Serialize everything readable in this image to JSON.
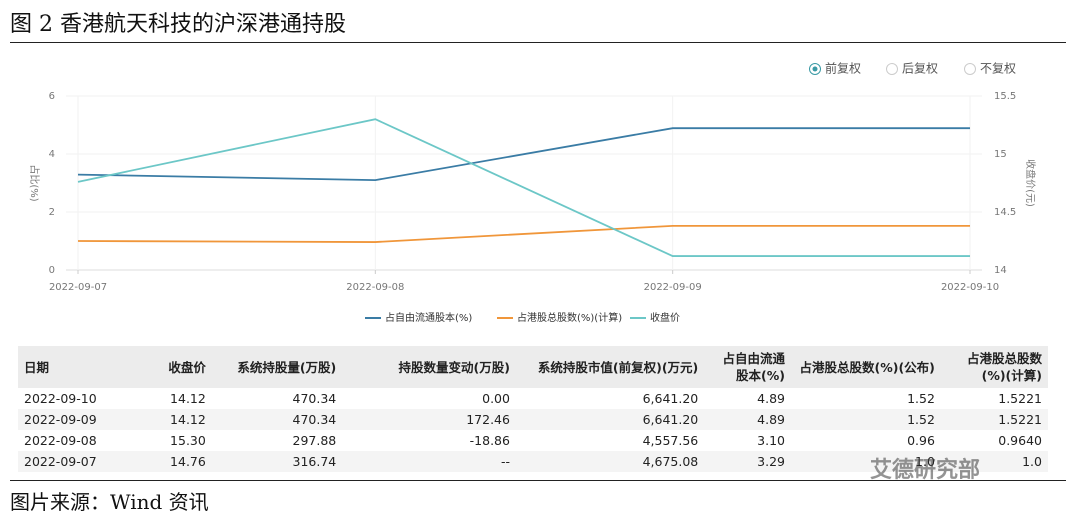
{
  "header": {
    "title": "图 2 香港航天科技的沪深港通持股"
  },
  "controls": {
    "options": [
      "前复权",
      "后复权",
      "不复权"
    ],
    "selected": 0
  },
  "chart_data": {
    "type": "line",
    "categories": [
      "2022-09-07",
      "2022-09-08",
      "2022-09-09",
      "2022-09-10"
    ],
    "y_label": "占比(%)",
    "y2_label": "收盘价(元)",
    "ylim": [
      0,
      6
    ],
    "yticks": [
      0,
      2,
      4,
      6
    ],
    "y2lim": [
      14,
      15.5
    ],
    "y2ticks": [
      14,
      14.5,
      15,
      15.5
    ],
    "grid": true,
    "legend": "bottom",
    "series": [
      {
        "name": "占自由流通股本(%)",
        "color": "#3a7ca5",
        "values": [
          3.29,
          3.1,
          4.89,
          4.89
        ]
      },
      {
        "name": "占港股总股数(%)(计算)",
        "color": "#f0963a",
        "values": [
          1.0,
          0.964,
          1.5221,
          1.5221
        ]
      },
      {
        "name": "收盘价",
        "color": "#6cc7c7",
        "axis": "y2",
        "values": [
          14.76,
          15.3,
          14.12,
          14.12
        ]
      }
    ]
  },
  "table": {
    "columns": [
      "日期",
      "收盘价",
      "系统持股量(万股)",
      "持股数量变动(万股)",
      "系统持股市值(前复权)(万元)",
      "占自由流通股本(%)",
      "占港股总股数(%)(公布)",
      "占港股总股数(%)(计算)"
    ],
    "rows": [
      [
        "2022-09-10",
        "14.12",
        "470.34",
        "0.00",
        "6,641.20",
        "4.89",
        "1.52",
        "1.5221"
      ],
      [
        "2022-09-09",
        "14.12",
        "470.34",
        "172.46",
        "6,641.20",
        "4.89",
        "1.52",
        "1.5221"
      ],
      [
        "2022-09-08",
        "15.30",
        "297.88",
        "-18.86",
        "4,557.56",
        "3.10",
        "0.96",
        "0.9640"
      ],
      [
        "2022-09-07",
        "14.76",
        "316.74",
        "--",
        "4,675.08",
        "3.29",
        "1.0",
        "1.0"
      ]
    ]
  },
  "watermark": "艾德研究部",
  "footer": {
    "source": "图片来源：Wind 资讯"
  }
}
